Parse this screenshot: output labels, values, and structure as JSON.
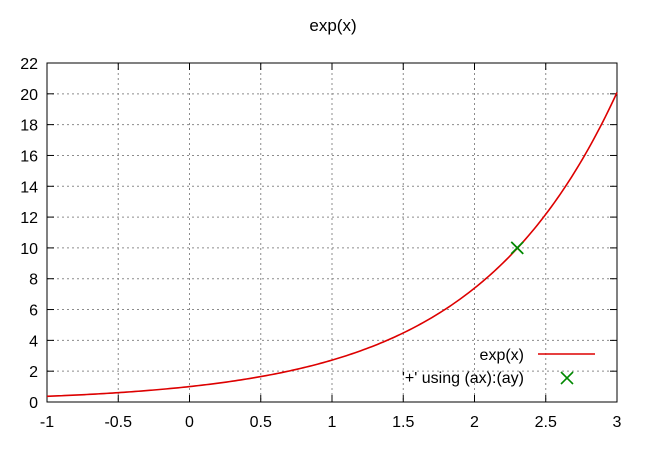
{
  "chart_data": {
    "type": "line",
    "title": "exp(x)",
    "xlabel": "",
    "ylabel": "",
    "xlim": [
      -1,
      3
    ],
    "ylim": [
      0,
      22
    ],
    "grid": true,
    "legend_position": "bottom-right",
    "x_ticks": [
      "-1",
      "-0.5",
      "0",
      "0.5",
      "1",
      "1.5",
      "2",
      "2.5",
      "3"
    ],
    "y_ticks": [
      "0",
      "2",
      "4",
      "6",
      "8",
      "10",
      "12",
      "14",
      "16",
      "18",
      "20",
      "22"
    ],
    "series": [
      {
        "name": "exp(x)",
        "type": "line",
        "function": "exp(x)",
        "color": "#dd0000",
        "x": [
          -1,
          -0.75,
          -0.5,
          -0.25,
          0,
          0.25,
          0.5,
          0.75,
          1,
          1.25,
          1.5,
          1.75,
          2,
          2.25,
          2.5,
          2.75,
          3
        ],
        "y": [
          0.37,
          0.47,
          0.61,
          0.78,
          1.0,
          1.28,
          1.65,
          2.12,
          2.72,
          3.49,
          4.48,
          5.75,
          7.39,
          9.49,
          12.18,
          15.64,
          20.09
        ]
      },
      {
        "name": "'+' using (ax):(ay)",
        "type": "scatter",
        "marker": "x",
        "color": "#008800",
        "x": [
          2.3
        ],
        "y": [
          10.0
        ]
      }
    ]
  }
}
